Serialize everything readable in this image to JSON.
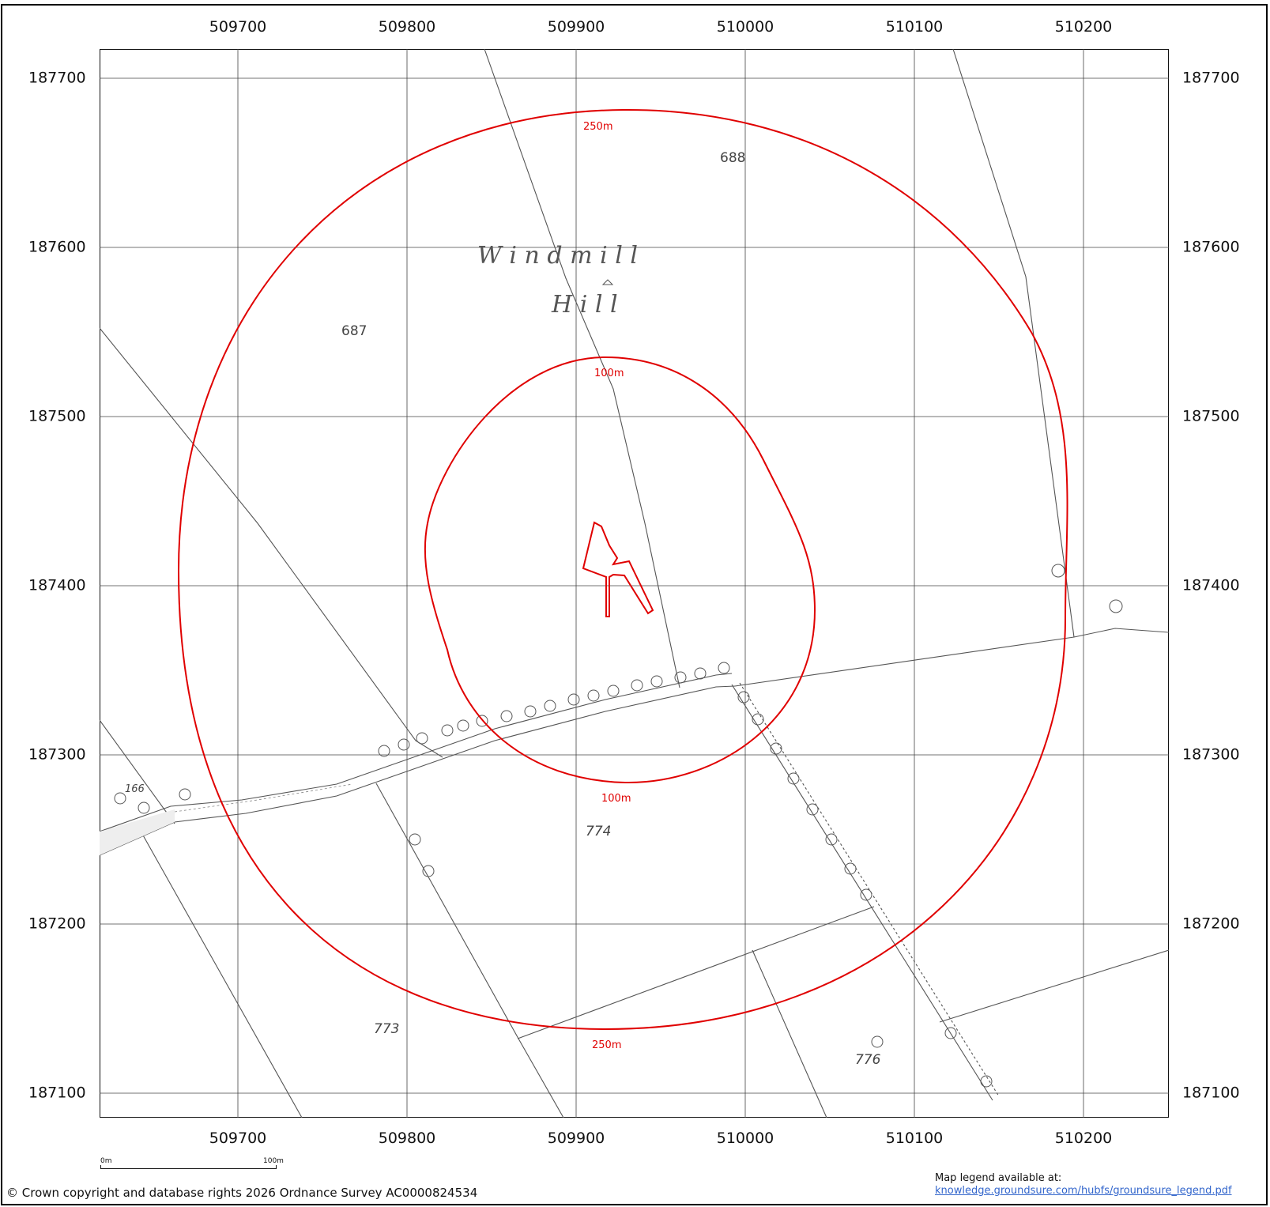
{
  "x_ticks": [
    "509700",
    "509800",
    "509900",
    "510000",
    "510100",
    "510200"
  ],
  "y_ticks": [
    "187700",
    "187600",
    "187500",
    "187400",
    "187300",
    "187200",
    "187100"
  ],
  "place_name": {
    "line1": "W i n d m i l l",
    "line2": "H i l l"
  },
  "parcels": [
    "688",
    "687",
    "774",
    "773",
    "776",
    "166"
  ],
  "buffers": {
    "outer": {
      "label_top": "250m",
      "label_bottom": "250m",
      "color": "#e00000"
    },
    "inner": {
      "label_top": "100m",
      "label_bottom": "100m",
      "color": "#e00000"
    }
  },
  "scale_bar": {
    "start": "0m",
    "end": "100m"
  },
  "copyright": "© Crown copyright and database rights 2026 Ordnance Survey AC0000824534",
  "legend_note": {
    "text": "Map legend available at:",
    "link": "knowledge.groundsure.com/hubfs/groundsure_legend.pdf"
  }
}
